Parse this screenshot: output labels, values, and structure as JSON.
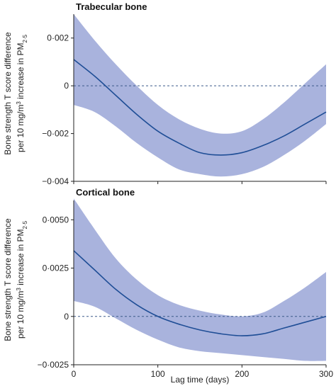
{
  "figure": {
    "xlabel": "Lag time (days)",
    "ylabel_line1": "Bone strength T score difference",
    "ylabel_line2_main": "per 10 mg/m",
    "ylabel_line2_sup": "3",
    "ylabel_line2_rest": " increase in PM",
    "ylabel_line2_sub": "2·5"
  },
  "colors": {
    "band": "#a9b3dd",
    "line": "#1f4e96",
    "ref": "#3b5a8a",
    "axis": "#222222"
  },
  "chart_data": [
    {
      "type": "line",
      "title": "Trabecular bone",
      "xlim": [
        0,
        300
      ],
      "ylim": [
        -0.004,
        0.003
      ],
      "xticks": [
        0,
        100,
        200,
        300
      ],
      "xtick_labels": [
        "",
        "",
        "",
        ""
      ],
      "yticks": [
        0.002,
        0,
        -0.002,
        -0.004
      ],
      "ytick_labels": [
        "0·002",
        "0",
        "−0·002",
        "−0·004"
      ],
      "reference_line_y": 0,
      "x": [
        0,
        25,
        50,
        75,
        100,
        125,
        150,
        175,
        200,
        225,
        250,
        275,
        300
      ],
      "estimate": [
        0.0011,
        0.0004,
        -0.0004,
        -0.0012,
        -0.0019,
        -0.0024,
        -0.0028,
        -0.0029,
        -0.0028,
        -0.0025,
        -0.0021,
        -0.0016,
        -0.0011
      ],
      "lower": [
        -0.0008,
        -0.0011,
        -0.0017,
        -0.0024,
        -0.003,
        -0.0035,
        -0.0037,
        -0.0038,
        -0.0037,
        -0.0034,
        -0.0029,
        -0.0023,
        -0.0016
      ],
      "upper": [
        0.003,
        0.0019,
        0.0009,
        0.0,
        -0.0008,
        -0.0014,
        -0.0018,
        -0.002,
        -0.0019,
        -0.0014,
        -0.0007,
        0.0001,
        0.0009
      ]
    },
    {
      "type": "line",
      "title": "Cortical bone",
      "xlim": [
        0,
        300
      ],
      "ylim": [
        -0.0025,
        0.006
      ],
      "xticks": [
        0,
        100,
        200,
        300
      ],
      "xtick_labels": [
        "0",
        "100",
        "200",
        "300"
      ],
      "yticks": [
        0.005,
        0.0025,
        0,
        -0.0025
      ],
      "ytick_labels": [
        "0·0050",
        "0·0025",
        "0",
        "−0·0025"
      ],
      "reference_line_y": 0,
      "x": [
        0,
        25,
        50,
        75,
        100,
        125,
        150,
        175,
        200,
        225,
        250,
        275,
        300
      ],
      "estimate": [
        0.0034,
        0.0024,
        0.0014,
        0.0006,
        0.0,
        -0.0004,
        -0.0007,
        -0.0009,
        -0.001,
        -0.0009,
        -0.0006,
        -0.0003,
        0.0
      ],
      "lower": [
        0.0008,
        0.0005,
        -0.0001,
        -0.0007,
        -0.0012,
        -0.0016,
        -0.0018,
        -0.0019,
        -0.002,
        -0.0021,
        -0.0022,
        -0.0023,
        -0.0023
      ],
      "upper": [
        0.0061,
        0.0045,
        0.003,
        0.0019,
        0.0011,
        0.0006,
        0.0003,
        0.0001,
        0.0,
        0.0002,
        0.0008,
        0.0015,
        0.0023
      ]
    }
  ]
}
